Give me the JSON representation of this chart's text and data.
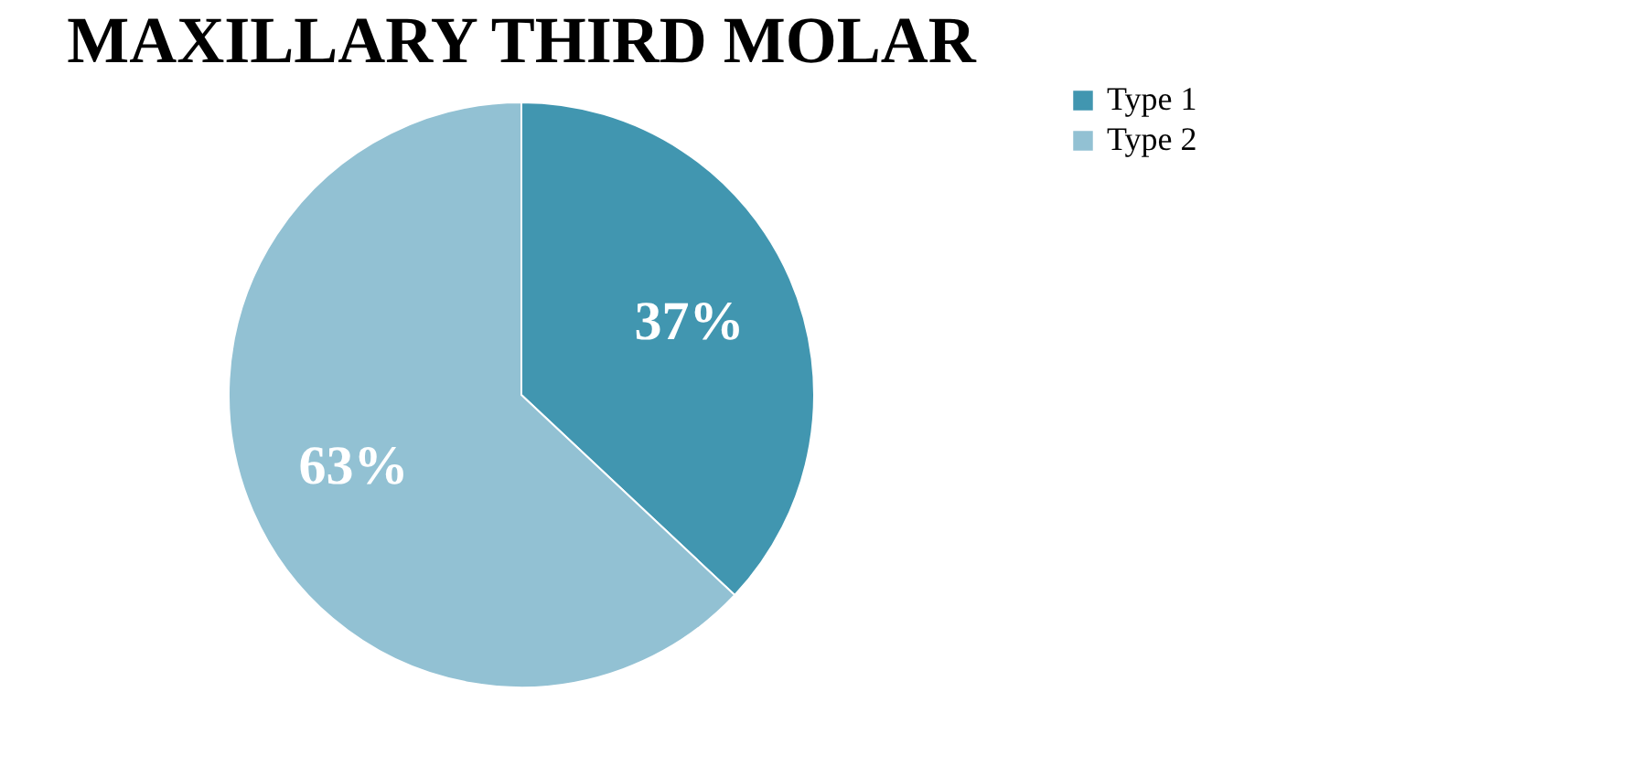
{
  "chart_data": {
    "type": "pie",
    "title": "MAXILLARY THIRD MOLAR",
    "categories": [
      "Type 1",
      "Type 2"
    ],
    "values": [
      37,
      63
    ],
    "colors": [
      "#4196b0",
      "#92c1d3"
    ],
    "value_labels": [
      "37%",
      "63%"
    ],
    "legend": "right"
  }
}
